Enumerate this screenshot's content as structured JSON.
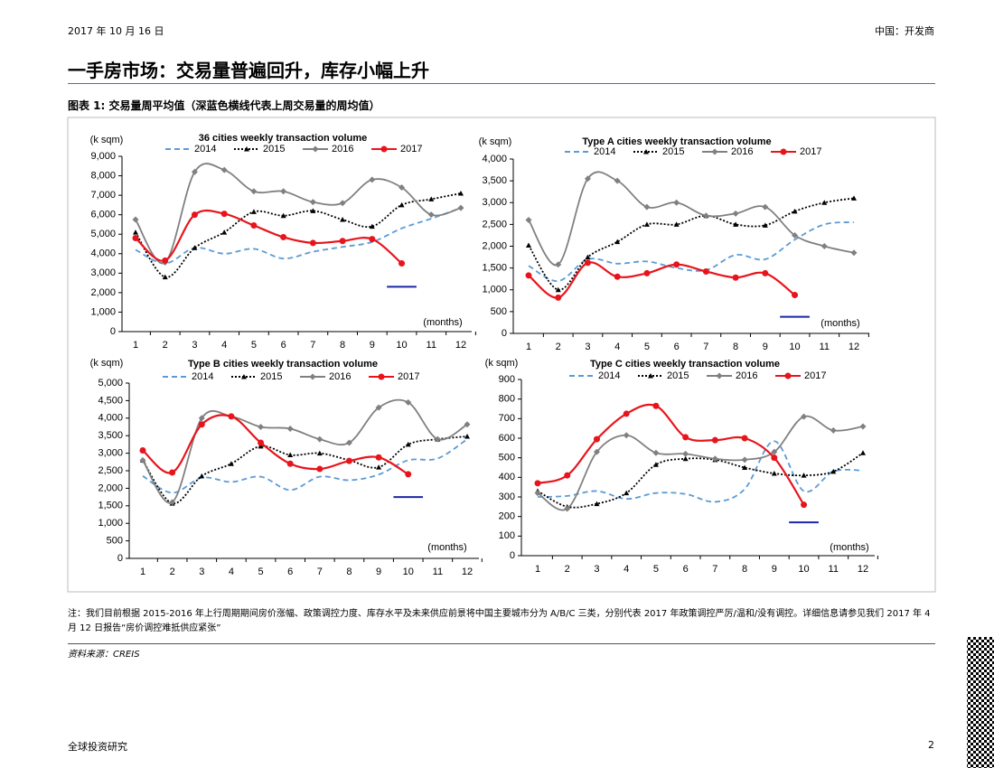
{
  "header": {
    "date": "2017 年 10 月 16 日",
    "section": "中国：开发商"
  },
  "title": "一手房市场：交易量普遍回升，库存小幅上升",
  "figure_caption": "图表 1: 交易量周平均值（深蓝色横线代表上周交易量的周均值）",
  "note": "注：我们目前根据 2015-2016 年上行周期期间房价涨幅、政策调控力度、库存水平及未来供应前景将中国主要城市分为 A/B/C 三类，分别代表 2017 年政策调控严厉/温和/没有调控。详细信息请参见我们 2017 年 4 月 12 日报告“房价调控难抵供应紧张”",
  "source": "资料来源：CREIS",
  "footer": {
    "left": "全球投资研究",
    "page": "2"
  },
  "chart_data": [
    {
      "type": "line",
      "title": "36 cities weekly transaction volume",
      "y_label": "(k sqm)",
      "x_label": "(months)",
      "categories": [
        "1",
        "2",
        "3",
        "4",
        "5",
        "6",
        "7",
        "8",
        "9",
        "10",
        "11",
        "12"
      ],
      "ylim": [
        0,
        9000
      ],
      "yticks": [
        0,
        {
          "value": 1000,
          "label": "1,000"
        },
        {
          "value": 2000,
          "label": "2,000"
        },
        {
          "value": 3000,
          "label": "3,000"
        },
        {
          "value": 4000,
          "label": "4,000"
        },
        {
          "value": 5000,
          "label": "5,000"
        },
        {
          "value": 6000,
          "label": "6,000"
        },
        {
          "value": 7000,
          "label": "7,000"
        },
        {
          "value": 8000,
          "label": "8,000"
        },
        {
          "value": 9000,
          "label": "9,000"
        }
      ],
      "reference_value": 2300,
      "reference_color": "#1a27a6",
      "series": [
        {
          "name": "2014",
          "color": "#5b9bd5",
          "dash": "dashed",
          "marker": "none",
          "values": [
            4200,
            3500,
            4300,
            4000,
            4250,
            3750,
            4100,
            4350,
            4600,
            5300,
            5800,
            6350
          ]
        },
        {
          "name": "2015",
          "color": "#000000",
          "dash": "dotted",
          "marker": "triangle",
          "values": [
            5100,
            2800,
            4300,
            5100,
            6150,
            5950,
            6200,
            5750,
            5400,
            6500,
            6800,
            7100
          ]
        },
        {
          "name": "2016",
          "color": "#808080",
          "dash": "solid",
          "marker": "diamond",
          "values": [
            5750,
            3550,
            8200,
            8300,
            7200,
            7200,
            6650,
            6600,
            7800,
            7400,
            6000,
            6350
          ]
        },
        {
          "name": "2017",
          "color": "#e8141c",
          "dash": "solid",
          "marker": "circle",
          "values": [
            4800,
            3650,
            6000,
            6050,
            5450,
            4850,
            4550,
            4650,
            4750,
            3500,
            null,
            null
          ]
        }
      ]
    },
    {
      "type": "line",
      "title": "Type A cities weekly transaction volume",
      "y_label": "(k sqm)",
      "x_label": "(months)",
      "categories": [
        "1",
        "2",
        "3",
        "4",
        "5",
        "6",
        "7",
        "8",
        "9",
        "10",
        "11",
        "12"
      ],
      "ylim": [
        0,
        4000
      ],
      "yticks": [
        0,
        500,
        {
          "value": 1000,
          "label": "1,000"
        },
        {
          "value": 1500,
          "label": "1,500"
        },
        {
          "value": 2000,
          "label": "2,000"
        },
        {
          "value": 2500,
          "label": "2,500"
        },
        {
          "value": 3000,
          "label": "3,000"
        },
        {
          "value": 3500,
          "label": "3,500"
        },
        {
          "value": 4000,
          "label": "4,000"
        }
      ],
      "reference_value": 380,
      "reference_color": "#1a27a6",
      "series": [
        {
          "name": "2014",
          "color": "#5b9bd5",
          "dash": "dashed",
          "marker": "none",
          "values": [
            1550,
            1200,
            1700,
            1600,
            1650,
            1500,
            1450,
            1800,
            1700,
            2150,
            2500,
            2550
          ]
        },
        {
          "name": "2015",
          "color": "#000000",
          "dash": "dotted",
          "marker": "triangle",
          "values": [
            2020,
            1000,
            1750,
            2100,
            2500,
            2500,
            2700,
            2500,
            2480,
            2800,
            3000,
            3100
          ]
        },
        {
          "name": "2016",
          "color": "#808080",
          "dash": "solid",
          "marker": "diamond",
          "values": [
            2600,
            1580,
            3550,
            3500,
            2900,
            3000,
            2700,
            2750,
            2900,
            2250,
            2000,
            1850
          ]
        },
        {
          "name": "2017",
          "color": "#e8141c",
          "dash": "solid",
          "marker": "circle",
          "values": [
            1330,
            820,
            1620,
            1300,
            1380,
            1580,
            1420,
            1280,
            1380,
            880,
            null,
            null
          ]
        }
      ]
    },
    {
      "type": "line",
      "title": "Type B cities weekly transaction volume",
      "y_label": "(k sqm)",
      "x_label": "(months)",
      "categories": [
        "1",
        "2",
        "3",
        "4",
        "5",
        "6",
        "7",
        "8",
        "9",
        "10",
        "11",
        "12"
      ],
      "ylim": [
        0,
        5000
      ],
      "yticks": [
        0,
        500,
        {
          "value": 1000,
          "label": "1,000"
        },
        {
          "value": 1500,
          "label": "1,500"
        },
        {
          "value": 2000,
          "label": "2,000"
        },
        {
          "value": 2500,
          "label": "2,500"
        },
        {
          "value": 3000,
          "label": "3,000"
        },
        {
          "value": 3500,
          "label": "3,500"
        },
        {
          "value": 4000,
          "label": "4,000"
        },
        {
          "value": 4500,
          "label": "4,500"
        },
        {
          "value": 5000,
          "label": "5,000"
        }
      ],
      "reference_value": 1750,
      "reference_color": "#1a27a6",
      "series": [
        {
          "name": "2014",
          "color": "#5b9bd5",
          "dash": "dashed",
          "marker": "none",
          "values": [
            2350,
            1870,
            2300,
            2180,
            2330,
            1950,
            2330,
            2230,
            2390,
            2800,
            2850,
            3400
          ]
        },
        {
          "name": "2015",
          "color": "#000000",
          "dash": "dotted",
          "marker": "triangle",
          "values": [
            2800,
            1570,
            2350,
            2700,
            3200,
            2950,
            3000,
            2800,
            2600,
            3250,
            3400,
            3480
          ]
        },
        {
          "name": "2016",
          "color": "#808080",
          "dash": "solid",
          "marker": "diamond",
          "values": [
            2800,
            1600,
            4000,
            4050,
            3750,
            3700,
            3400,
            3300,
            4300,
            4450,
            3400,
            3820
          ]
        },
        {
          "name": "2017",
          "color": "#e8141c",
          "dash": "solid",
          "marker": "circle",
          "values": [
            3080,
            2450,
            3820,
            4050,
            3300,
            2700,
            2550,
            2780,
            2880,
            2400,
            null,
            null
          ]
        }
      ]
    },
    {
      "type": "line",
      "title": "Type C cities weekly transaction volume",
      "y_label": "(k sqm)",
      "x_label": "(months)",
      "categories": [
        "1",
        "2",
        "3",
        "4",
        "5",
        "6",
        "7",
        "8",
        "9",
        "10",
        "11",
        "12"
      ],
      "ylim": [
        0,
        900
      ],
      "yticks": [
        0,
        100,
        200,
        300,
        400,
        500,
        600,
        700,
        800,
        900
      ],
      "reference_value": 170,
      "reference_color": "#1a27a6",
      "series": [
        {
          "name": "2014",
          "color": "#5b9bd5",
          "dash": "dashed",
          "marker": "none",
          "values": [
            300,
            305,
            330,
            290,
            320,
            315,
            275,
            340,
            585,
            330,
            430,
            435
          ]
        },
        {
          "name": "2015",
          "color": "#000000",
          "dash": "dotted",
          "marker": "triangle",
          "values": [
            330,
            250,
            265,
            320,
            465,
            495,
            490,
            450,
            420,
            410,
            430,
            525
          ]
        },
        {
          "name": "2016",
          "color": "#808080",
          "dash": "solid",
          "marker": "diamond",
          "values": [
            320,
            240,
            530,
            615,
            525,
            520,
            495,
            490,
            530,
            710,
            640,
            660
          ]
        },
        {
          "name": "2017",
          "color": "#e8141c",
          "dash": "solid",
          "marker": "circle",
          "values": [
            370,
            410,
            595,
            725,
            765,
            605,
            590,
            600,
            500,
            260,
            null,
            null
          ]
        }
      ]
    }
  ]
}
